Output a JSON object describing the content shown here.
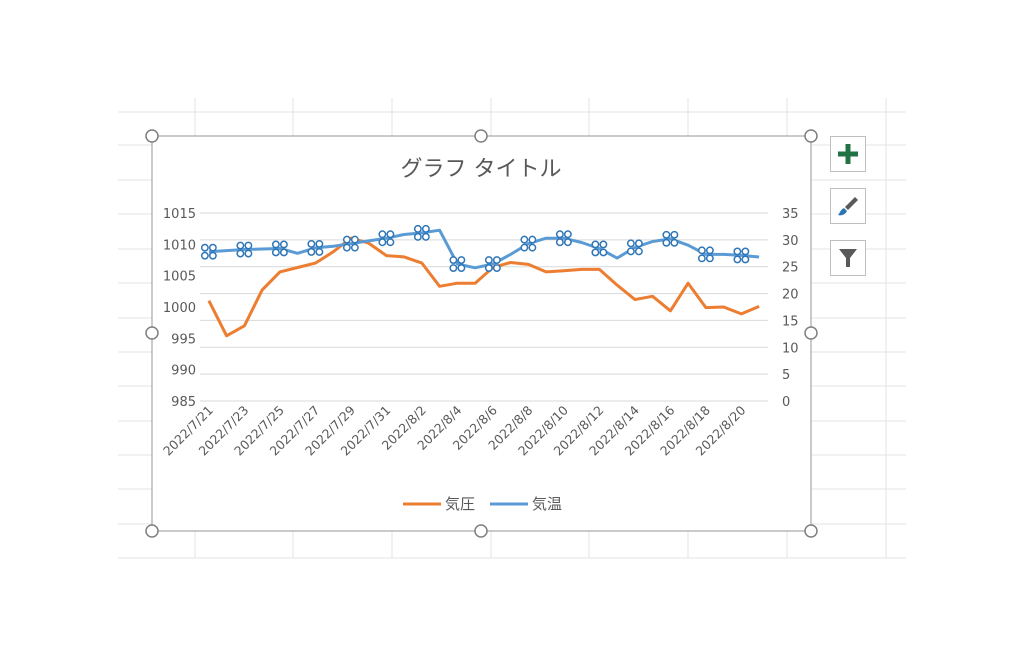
{
  "chart_data": {
    "type": "line",
    "title": "グラフ タイトル",
    "x": [
      "2022/7/21",
      "2022/7/22",
      "2022/7/23",
      "2022/7/24",
      "2022/7/25",
      "2022/7/26",
      "2022/7/27",
      "2022/7/28",
      "2022/7/29",
      "2022/7/30",
      "2022/7/31",
      "2022/8/1",
      "2022/8/2",
      "2022/8/3",
      "2022/8/4",
      "2022/8/5",
      "2022/8/6",
      "2022/8/7",
      "2022/8/8",
      "2022/8/9",
      "2022/8/10",
      "2022/8/11",
      "2022/8/12",
      "2022/8/13",
      "2022/8/14",
      "2022/8/15",
      "2022/8/16",
      "2022/8/17",
      "2022/8/18",
      "2022/8/19",
      "2022/8/20",
      "2022/8/21"
    ],
    "x_tick_labels": [
      "2022/7/21",
      "2022/7/23",
      "2022/7/25",
      "2022/7/27",
      "2022/7/29",
      "2022/7/31",
      "2022/8/2",
      "2022/8/4",
      "2022/8/6",
      "2022/8/8",
      "2022/8/10",
      "2022/8/12",
      "2022/8/14",
      "2022/8/16",
      "2022/8/18",
      "2022/8/20"
    ],
    "series": [
      {
        "name": "気圧",
        "axis": "left",
        "color": "#ed7d31",
        "values": [
          1001,
          995.4,
          997,
          1002.7,
          1005.6,
          1006.3,
          1007,
          1008.8,
          1011,
          1010.2,
          1008.2,
          1008,
          1007,
          1003.3,
          1003.8,
          1003.8,
          1006.3,
          1007.1,
          1006.8,
          1005.6,
          1005.8,
          1006,
          1006,
          1003.5,
          1001.2,
          1001.7,
          999.4,
          1003.8,
          999.9,
          1000,
          998.9,
          1000.1
        ]
      },
      {
        "name": "気温",
        "axis": "right",
        "color": "#5b9bd5",
        "values": [
          27.8,
          28.0,
          28.2,
          28.3,
          28.4,
          27.5,
          28.5,
          28.8,
          29.3,
          29.8,
          30.3,
          31.0,
          31.3,
          31.8,
          25.5,
          24.8,
          25.5,
          27.3,
          29.3,
          30.3,
          30.3,
          29.5,
          28.4,
          26.6,
          28.6,
          29.7,
          30.2,
          29.0,
          27.3,
          27.3,
          27.1,
          26.8
        ],
        "marked": [
          0,
          2,
          4,
          6,
          8,
          10,
          12,
          14,
          16,
          18,
          20,
          22,
          24,
          26,
          28,
          30
        ]
      }
    ],
    "y_left": {
      "ticks": [
        "985",
        "990",
        "995",
        "1000",
        "1005",
        "1010",
        "1015"
      ],
      "range": [
        985,
        1015
      ]
    },
    "y_right": {
      "ticks": [
        "0",
        "5",
        "10",
        "15",
        "20",
        "25",
        "30",
        "35"
      ],
      "range": [
        0,
        35
      ]
    },
    "legend_position": "bottom",
    "grid": true
  },
  "colors": {
    "pressure": "#ed7d31",
    "temperature": "#5b9bd5",
    "plus": "#217346"
  },
  "side_buttons": [
    {
      "icon": "plus-icon"
    },
    {
      "icon": "brush-icon"
    },
    {
      "icon": "filter-icon"
    }
  ]
}
